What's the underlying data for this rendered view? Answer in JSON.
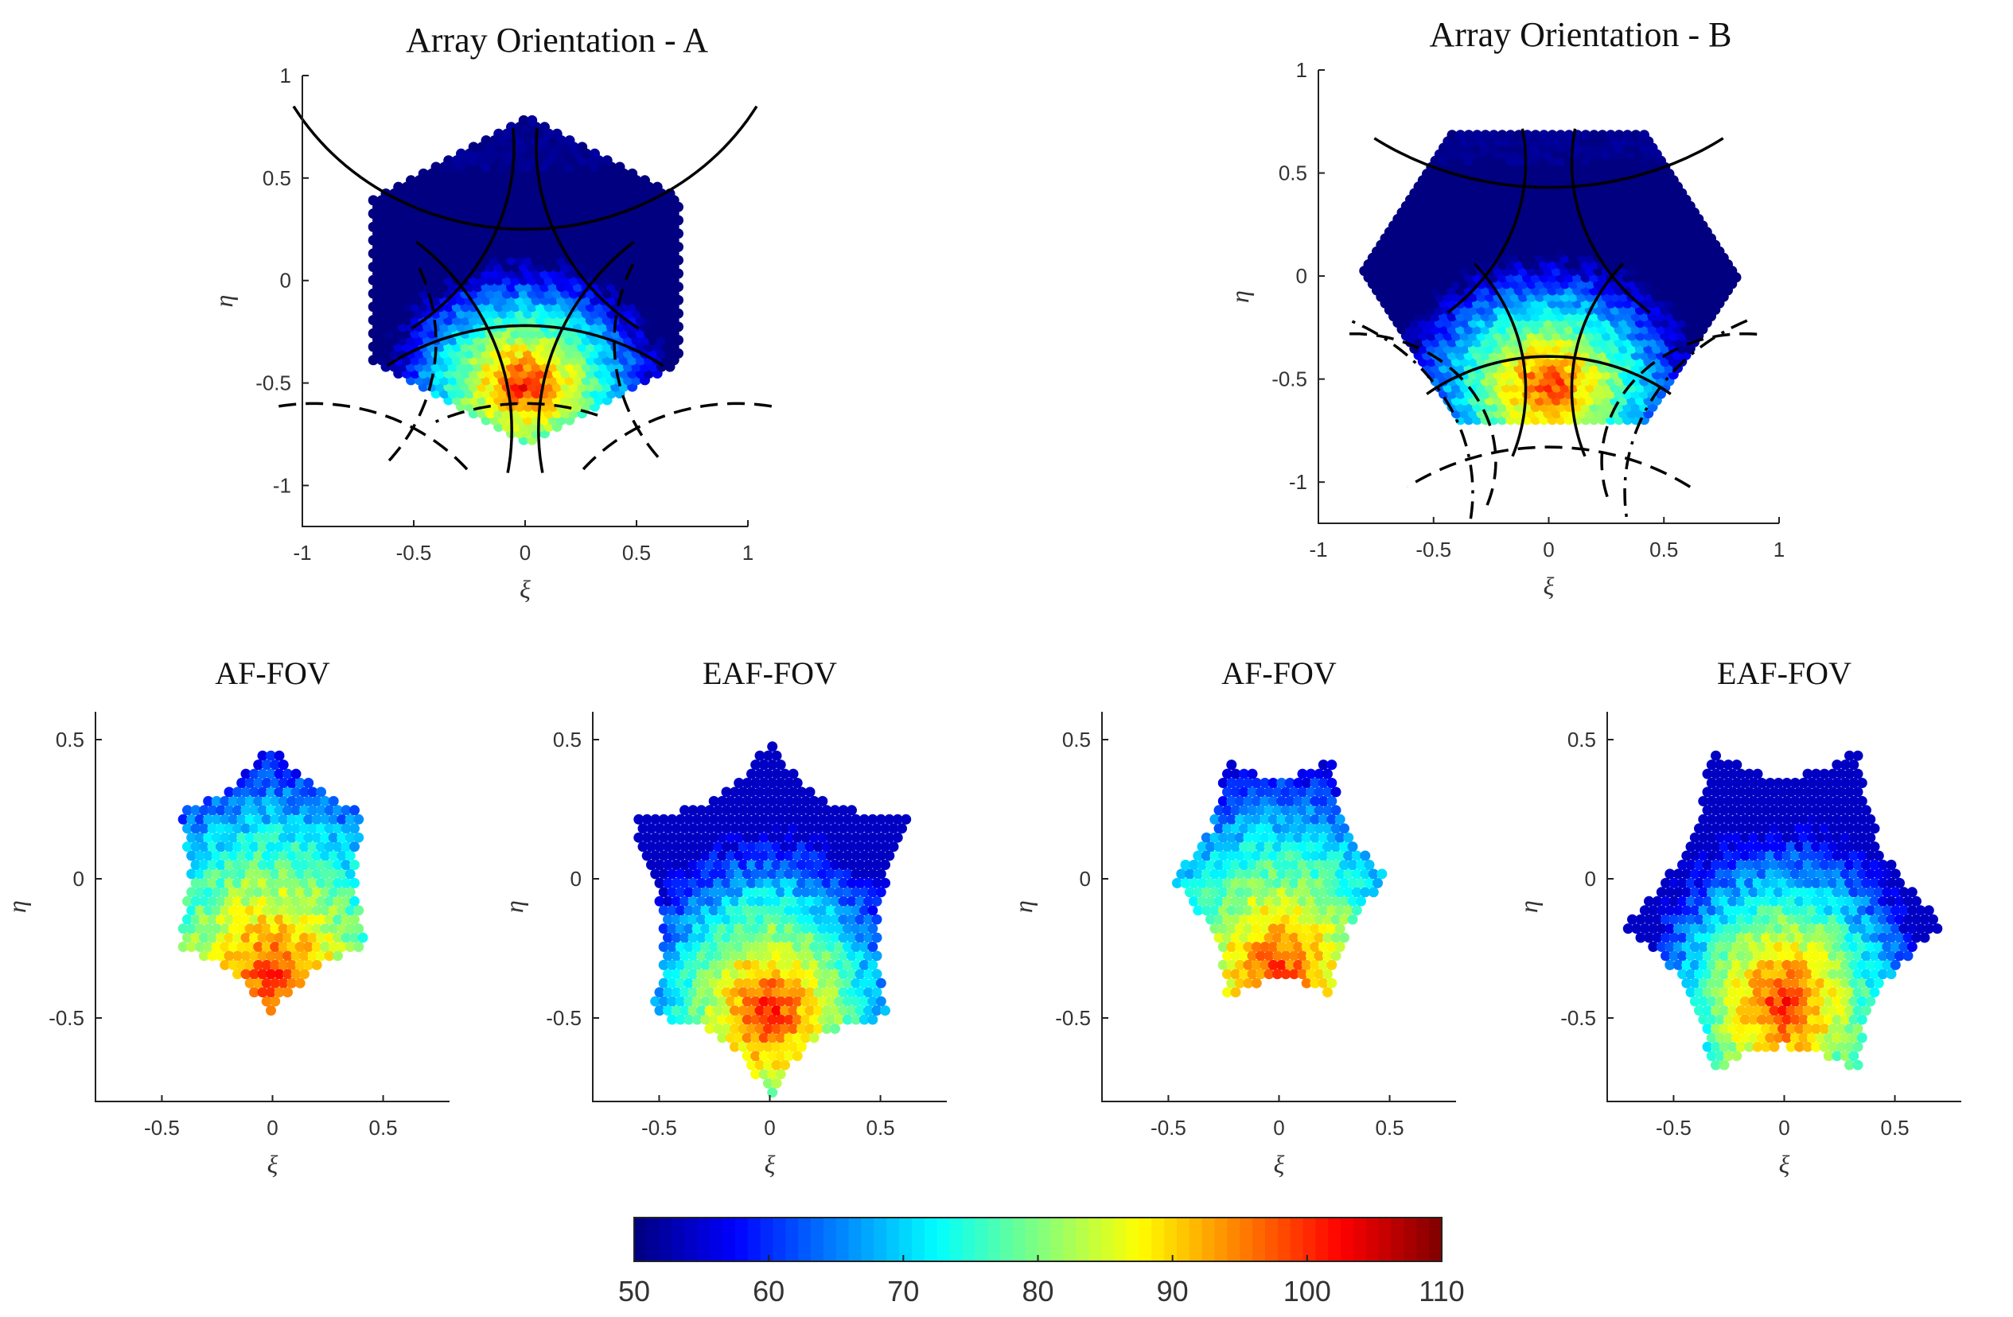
{
  "chart_data": [
    {
      "id": "A",
      "type": "heatmap",
      "title": "Array Orientation - A",
      "xlabel": "ξ",
      "ylabel": "η",
      "xlim": [
        -1,
        1
      ],
      "ylim": [
        -1.2,
        1
      ],
      "xticks": [
        "-1",
        "-0.5",
        "0",
        "0.5",
        "1"
      ],
      "yticks": [
        "1",
        "0.5",
        "0",
        "-0.5",
        "-1"
      ],
      "xtick_values": [
        -1,
        -0.5,
        0,
        0.5,
        1
      ],
      "ytick_values": [
        1,
        0.5,
        0,
        -0.5,
        -1
      ],
      "region": {
        "shape": "hexagon",
        "center": [
          0,
          0
        ],
        "radius": 0.8,
        "vertex_angle_deg": 90,
        "clip_top": 0.8,
        "clip_bottom": -0.8
      },
      "field": {
        "max_center": [
          0,
          -0.5
        ],
        "max_value": 102,
        "min_value": 54,
        "falloff": 82
      },
      "dark_region": {
        "above_y": 0.55,
        "value": 50
      },
      "solid_arcs": [
        {
          "cx": 0,
          "cy": 1.45,
          "r": 1.2,
          "theta": [
            210,
            330
          ]
        },
        {
          "cx": -1.26,
          "cy": -0.73,
          "r": 1.2,
          "theta": [
            -10,
            50
          ]
        },
        {
          "cx": 1.26,
          "cy": -0.73,
          "r": 1.2,
          "theta": [
            130,
            190
          ]
        },
        {
          "cx": 0,
          "cy": -1.3,
          "r": 1.08,
          "theta": [
            55,
            125
          ]
        },
        {
          "cx": 1.13,
          "cy": 0.65,
          "r": 1.08,
          "theta": [
            175,
            235
          ]
        },
        {
          "cx": -1.13,
          "cy": 0.65,
          "r": 1.08,
          "theta": [
            -55,
            5
          ]
        }
      ],
      "dashed_arcs": [
        {
          "cx": 0,
          "cy": -1.55,
          "r": 0.95,
          "theta": [
            70,
            115
          ]
        },
        {
          "cx": -0.95,
          "cy": -1.5,
          "r": 0.9,
          "theta": [
            40,
            100
          ]
        },
        {
          "cx": 0.95,
          "cy": -1.5,
          "r": 0.9,
          "theta": [
            80,
            140
          ]
        },
        {
          "cx": -1.3,
          "cy": -0.3,
          "r": 0.9,
          "theta": [
            -40,
            25
          ]
        },
        {
          "cx": 1.3,
          "cy": -0.3,
          "r": 0.9,
          "theta": [
            155,
            220
          ]
        }
      ],
      "dashdot_arcs": []
    },
    {
      "id": "B",
      "type": "heatmap",
      "title": "Array Orientation - B",
      "xlabel": "ξ",
      "ylabel": "η",
      "xlim": [
        -1,
        1
      ],
      "ylim": [
        -1.2,
        1
      ],
      "xticks": [
        "-1",
        "-0.5",
        "0",
        "0.5",
        "1"
      ],
      "yticks": [
        "1",
        "0.5",
        "0",
        "-0.5",
        "-1"
      ],
      "xtick_values": [
        -1,
        -0.5,
        0,
        0.5,
        1
      ],
      "ytick_values": [
        1,
        0.5,
        0,
        -0.5,
        -1
      ],
      "region": {
        "shape": "hexagon",
        "center": [
          0,
          0
        ],
        "radius": 0.82,
        "vertex_angle_deg": 0,
        "clip_top": 0.7,
        "clip_bottom": -0.7
      },
      "field": {
        "max_center": [
          0,
          -0.52
        ],
        "max_value": 101,
        "min_value": 54,
        "falloff": 78
      },
      "dark_region": {
        "above_y": 0.56,
        "value": 50
      },
      "solid_arcs": [
        {
          "cx": 0,
          "cy": 1.75,
          "r": 1.32,
          "theta": [
            235,
            305
          ]
        },
        {
          "cx": 0,
          "cy": -1.25,
          "r": 0.86,
          "theta": [
            52,
            128
          ]
        },
        {
          "cx": -1.05,
          "cy": 0.55,
          "r": 0.95,
          "theta": [
            -50,
            10
          ]
        },
        {
          "cx": 1.05,
          "cy": 0.55,
          "r": 0.95,
          "theta": [
            170,
            230
          ]
        },
        {
          "cx": -1.05,
          "cy": -0.55,
          "r": 0.95,
          "theta": [
            -20,
            40
          ]
        },
        {
          "cx": 1.05,
          "cy": -0.55,
          "r": 0.95,
          "theta": [
            140,
            200
          ]
        }
      ],
      "dashed_arcs": [
        {
          "cx": 0,
          "cy": -1.9,
          "r": 1.07,
          "theta": [
            55,
            125
          ]
        },
        {
          "cx": -0.85,
          "cy": -0.9,
          "r": 0.62,
          "theta": [
            -20,
            95
          ]
        },
        {
          "cx": 0.85,
          "cy": -0.9,
          "r": 0.62,
          "theta": [
            85,
            200
          ]
        }
      ],
      "dashdot_arcs": [
        {
          "cx": -1.25,
          "cy": -1.05,
          "r": 0.92,
          "theta": [
            -8,
            65
          ]
        },
        {
          "cx": 1.25,
          "cy": -1.05,
          "r": 0.92,
          "theta": [
            115,
            188
          ]
        }
      ]
    },
    {
      "id": "C",
      "type": "heatmap",
      "title": "AF-FOV",
      "xlabel": "ξ",
      "ylabel": "η",
      "xlim": [
        -0.8,
        0.8
      ],
      "ylim": [
        -0.8,
        0.6
      ],
      "xticks": [
        "-0.5",
        "0",
        "0.5"
      ],
      "yticks": [
        "0.5",
        "0",
        "-0.5"
      ],
      "xtick_values": [
        -0.5,
        0,
        0.5
      ],
      "ytick_values": [
        0.5,
        0,
        -0.5
      ],
      "region": {
        "shape": "star",
        "center": [
          0,
          0
        ],
        "outer": 0.48,
        "inner": 0.375,
        "start_deg": 90
      },
      "field": {
        "max_center": [
          0,
          -0.35
        ],
        "max_value": 100,
        "min_value": 60,
        "falloff": 52
      },
      "solid_arcs": [],
      "dashed_arcs": [],
      "dashdot_arcs": []
    },
    {
      "id": "D",
      "type": "heatmap",
      "title": "EAF-FOV",
      "xlabel": "ξ",
      "ylabel": "η",
      "xlim": [
        -0.8,
        0.8
      ],
      "ylim": [
        -0.8,
        0.6
      ],
      "xticks": [
        "-0.5",
        "0",
        "0.5"
      ],
      "yticks": [
        "0.5",
        "0",
        "-0.5"
      ],
      "xtick_values": [
        -0.5,
        0,
        0.5
      ],
      "ytick_values": [
        0.5,
        0,
        -0.5
      ],
      "region": {
        "shape": "poly",
        "points": [
          [
            0,
            0.49
          ],
          [
            0.63,
            0.22
          ],
          [
            0.53,
            -0.5
          ],
          [
            0,
            -0.79
          ],
          [
            -0.53,
            -0.5
          ],
          [
            -0.63,
            0.22
          ]
        ],
        "inset": 0.09
      },
      "field": {
        "max_center": [
          0,
          -0.48
        ],
        "max_value": 102,
        "min_value": 58,
        "falloff": 70
      },
      "solid_arcs": [],
      "dashed_arcs": [],
      "dashdot_arcs": []
    },
    {
      "id": "E",
      "type": "heatmap",
      "title": "AF-FOV",
      "xlabel": "ξ",
      "ylabel": "η",
      "xlim": [
        -0.8,
        0.8
      ],
      "ylim": [
        -0.8,
        0.6
      ],
      "xticks": [
        "-0.5",
        "0",
        "0.5"
      ],
      "yticks": [
        "0.5",
        "0",
        "-0.5"
      ],
      "xtick_values": [
        -0.5,
        0,
        0.5
      ],
      "ytick_values": [
        0.5,
        0,
        -0.5
      ],
      "region": {
        "shape": "poly",
        "points": [
          [
            -0.24,
            0.43
          ],
          [
            0.24,
            0.43
          ],
          [
            0.5,
            0
          ],
          [
            0.24,
            -0.43
          ],
          [
            -0.24,
            -0.43
          ],
          [
            -0.5,
            0
          ]
        ],
        "inset": 0.07
      },
      "field": {
        "max_center": [
          0,
          -0.35
        ],
        "max_value": 100,
        "min_value": 58,
        "falloff": 55
      },
      "solid_arcs": [],
      "dashed_arcs": [],
      "dashdot_arcs": []
    },
    {
      "id": "F",
      "type": "heatmap",
      "title": "EAF-FOV",
      "xlabel": "ξ",
      "ylabel": "η",
      "xlim": [
        -0.8,
        0.8
      ],
      "ylim": [
        -0.8,
        0.6
      ],
      "xticks": [
        "-0.5",
        "0",
        "0.5"
      ],
      "yticks": [
        "0.5",
        "0",
        "-0.5"
      ],
      "xtick_values": [
        -0.5,
        0,
        0.5
      ],
      "ytick_values": [
        0.5,
        0,
        -0.5
      ],
      "region": {
        "shape": "poly",
        "points": [
          [
            -0.33,
            0.46
          ],
          [
            0.33,
            0.46
          ],
          [
            0.74,
            -0.17
          ],
          [
            0.33,
            -0.7
          ],
          [
            -0.33,
            -0.7
          ],
          [
            -0.74,
            -0.17
          ]
        ],
        "inset": 0.1
      },
      "field": {
        "max_center": [
          0,
          -0.45
        ],
        "max_value": 102,
        "min_value": 58,
        "falloff": 72
      },
      "solid_arcs": [],
      "dashed_arcs": [],
      "dashdot_arcs": []
    }
  ],
  "colorbar": {
    "min": 50,
    "max": 110,
    "ticks": [
      "50",
      "60",
      "70",
      "80",
      "90",
      "100",
      "110"
    ],
    "tick_values": [
      50,
      60,
      70,
      80,
      90,
      100,
      110
    ],
    "colormap": "jet"
  }
}
